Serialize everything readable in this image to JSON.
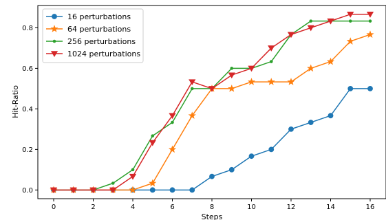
{
  "chart_data": {
    "type": "line",
    "xlabel": "Steps",
    "ylabel": "Hit-Ratio",
    "xlim": [
      -0.8,
      16.8
    ],
    "ylim": [
      -0.043,
      0.91
    ],
    "xticks": [
      0,
      2,
      4,
      6,
      8,
      10,
      12,
      14,
      16
    ],
    "yticks": [
      0.0,
      0.2,
      0.4,
      0.6,
      0.8
    ],
    "ytick_labels": [
      "0.0",
      "0.2",
      "0.4",
      "0.6",
      "0.8"
    ],
    "grid": false,
    "legend_position": "top-left",
    "x": [
      0,
      1,
      2,
      3,
      4,
      5,
      6,
      7,
      8,
      9,
      10,
      11,
      12,
      13,
      14,
      15,
      16
    ],
    "series": [
      {
        "name": "16 perturbations",
        "color": "#1f77b4",
        "marker": "circle",
        "values": [
          0,
          0,
          0,
          0,
          0,
          0,
          0,
          0,
          0.0667,
          0.1,
          0.1667,
          0.2,
          0.3,
          0.3333,
          0.3667,
          0.5,
          0.5
        ]
      },
      {
        "name": "64 perturbations",
        "color": "#ff7f0e",
        "marker": "star",
        "values": [
          0,
          0,
          0,
          0,
          0,
          0.0333,
          0.2,
          0.3667,
          0.5,
          0.5,
          0.5333,
          0.5333,
          0.5333,
          0.6,
          0.6333,
          0.7333,
          0.7667
        ]
      },
      {
        "name": "256 perturbations",
        "color": "#2ca02c",
        "marker": "dot",
        "values": [
          0,
          0,
          0,
          0.0333,
          0.1,
          0.2667,
          0.3333,
          0.5,
          0.5,
          0.6,
          0.6,
          0.6333,
          0.7667,
          0.8333,
          0.8333,
          0.8333,
          0.8333
        ]
      },
      {
        "name": "1024 perturbations",
        "color": "#d62728",
        "marker": "triangle-down",
        "values": [
          0,
          0,
          0,
          0,
          0.0667,
          0.2333,
          0.3667,
          0.5333,
          0.5,
          0.5667,
          0.6,
          0.7,
          0.7667,
          0.8,
          0.8333,
          0.8667,
          0.8667
        ]
      }
    ]
  }
}
